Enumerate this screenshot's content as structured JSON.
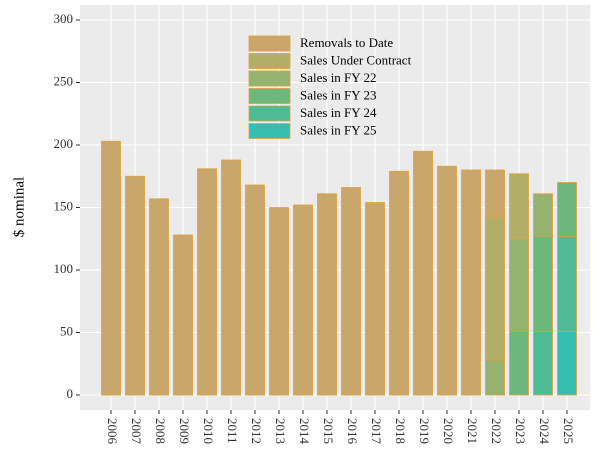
{
  "chart_data": {
    "type": "stacked_bar",
    "y_label": "$ nominal",
    "categories": [
      "2006",
      "2007",
      "2008",
      "2009",
      "2010",
      "2011",
      "2012",
      "2013",
      "2014",
      "2015",
      "2016",
      "2017",
      "2018",
      "2019",
      "2020",
      "2021",
      "2022",
      "2023",
      "2024",
      "2025"
    ],
    "series": [
      {
        "name": "Removals to Date",
        "color": "#c9a66b",
        "values": [
          203,
          175,
          157,
          128,
          181,
          188,
          168,
          150,
          152,
          161,
          166,
          154,
          179,
          195,
          183,
          180,
          38,
          null,
          null,
          null
        ]
      },
      {
        "name": "Sales Under Contract",
        "color": "#b3ad6a",
        "values": [
          null,
          null,
          null,
          null,
          null,
          null,
          null,
          null,
          null,
          null,
          null,
          null,
          null,
          null,
          null,
          null,
          114,
          52,
          null,
          null
        ]
      },
      {
        "name": "Sales in FY 22",
        "color": "#93b36e",
        "values": [
          null,
          null,
          null,
          null,
          null,
          null,
          null,
          null,
          null,
          null,
          null,
          null,
          null,
          null,
          null,
          null,
          28,
          74,
          34,
          null
        ]
      },
      {
        "name": "Sales in FY 23",
        "color": "#6db67c",
        "values": [
          null,
          null,
          null,
          null,
          null,
          null,
          null,
          null,
          null,
          null,
          null,
          null,
          null,
          null,
          null,
          null,
          null,
          51,
          76,
          43
        ]
      },
      {
        "name": "Sales in FY 24",
        "color": "#4fba96",
        "values": [
          null,
          null,
          null,
          null,
          null,
          null,
          null,
          null,
          null,
          null,
          null,
          null,
          null,
          null,
          null,
          null,
          null,
          null,
          51,
          76
        ]
      },
      {
        "name": "Sales in FY 25",
        "color": "#38bdb2",
        "values": [
          null,
          null,
          null,
          null,
          null,
          null,
          null,
          null,
          null,
          null,
          null,
          null,
          null,
          null,
          null,
          null,
          null,
          null,
          null,
          51
        ]
      }
    ],
    "ylim": [
      -12,
      312
    ],
    "yticks": [
      0,
      50,
      100,
      150,
      200,
      250,
      300
    ],
    "grid": true,
    "legend": "top"
  }
}
